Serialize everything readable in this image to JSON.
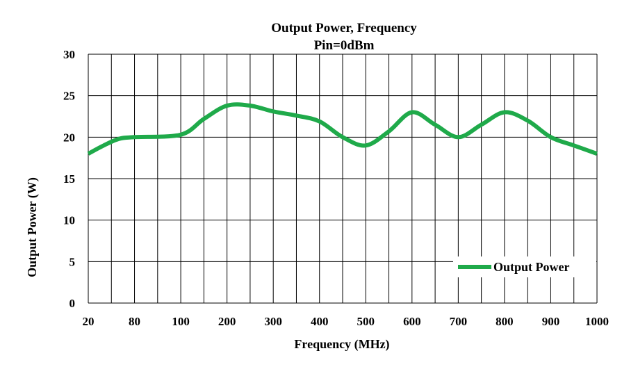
{
  "chart_data": {
    "type": "line",
    "title": "Output Power, Frequency",
    "subtitle": "Pin=0dBm",
    "xlabel": "Frequency (MHz)",
    "ylabel": "Output Power (W)",
    "x_tick_labels": [
      "20",
      "80",
      "100",
      "200",
      "300",
      "400",
      "500",
      "600",
      "700",
      "800",
      "900",
      "1000"
    ],
    "y_ticks": [
      0,
      5,
      10,
      15,
      20,
      25,
      30
    ],
    "ylim": [
      0,
      30
    ],
    "grid": true,
    "legend_position": "bottom-right",
    "series": [
      {
        "name": "Output Power",
        "color": "#1faa4a",
        "x": [
          "20",
          "40",
          "60",
          "80",
          "100",
          "150",
          "200",
          "250",
          "300",
          "350",
          "400",
          "450",
          "500",
          "550",
          "600",
          "650",
          "700",
          "750",
          "800",
          "850",
          "900",
          "950",
          "1000"
        ],
        "values": [
          18,
          19,
          19.8,
          20,
          20.3,
          22.2,
          23.8,
          23.8,
          23.1,
          22.6,
          21.9,
          20,
          19,
          20.7,
          23,
          21.5,
          20,
          21.5,
          23,
          22,
          20,
          19,
          18
        ]
      }
    ]
  }
}
